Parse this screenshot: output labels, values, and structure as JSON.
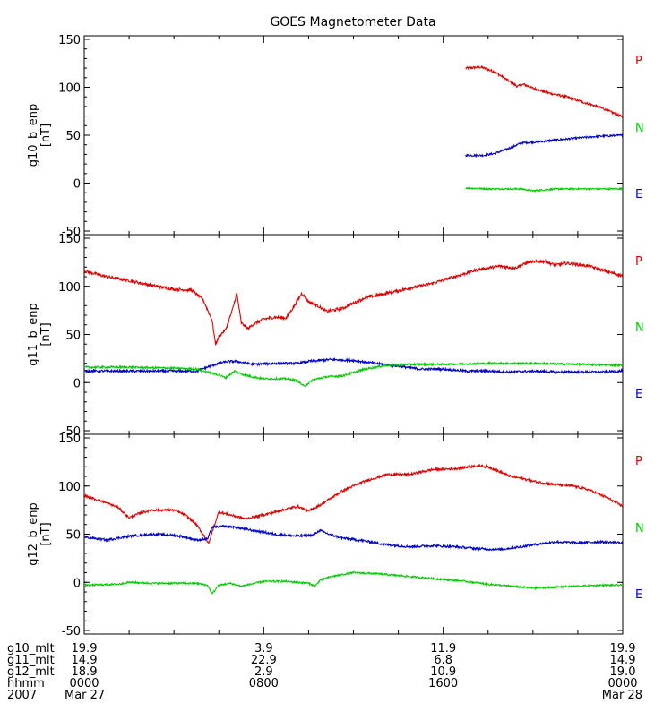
{
  "chart_data": {
    "type": "line",
    "title": "GOES Magnetometer Data",
    "x_range_hours": [
      0,
      24
    ],
    "panels": [
      {
        "ylabel": "g10_b_enp",
        "yunit": "[nT]",
        "ylim": [
          -50,
          150
        ],
        "yticks": [
          "150",
          "100",
          "50",
          "0",
          "-50"
        ],
        "legend": [
          "P",
          "N",
          "E"
        ],
        "series": [
          {
            "name": "P",
            "color": "#e00000",
            "noise": 1.2,
            "points": [
              [
                17.0,
                120
              ],
              [
                17.7,
                121
              ],
              [
                18.3,
                116
              ],
              [
                18.9,
                107
              ],
              [
                19.3,
                101
              ],
              [
                19.6,
                103
              ],
              [
                20.0,
                99
              ],
              [
                20.7,
                94
              ],
              [
                21.5,
                90
              ],
              [
                22.3,
                84
              ],
              [
                23.0,
                79
              ],
              [
                24.0,
                69
              ]
            ]
          },
          {
            "name": "N",
            "color": "#0000d0",
            "noise": 1.0,
            "points": [
              [
                17.0,
                29
              ],
              [
                17.8,
                29
              ],
              [
                18.3,
                31
              ],
              [
                18.9,
                36
              ],
              [
                19.5,
                42
              ],
              [
                20.2,
                43
              ],
              [
                21.0,
                45
              ],
              [
                22.0,
                47
              ],
              [
                23.0,
                49
              ],
              [
                24.0,
                50
              ]
            ]
          },
          {
            "name": "E",
            "color": "#00cc00",
            "noise": 0.8,
            "points": [
              [
                17.0,
                -5
              ],
              [
                18.0,
                -6
              ],
              [
                18.7,
                -6
              ],
              [
                19.5,
                -6
              ],
              [
                20.0,
                -8
              ],
              [
                21.0,
                -6
              ],
              [
                22.0,
                -6
              ],
              [
                23.0,
                -6
              ],
              [
                24.0,
                -6
              ]
            ]
          }
        ]
      },
      {
        "ylabel": "g11_b_enp",
        "yunit": "[nT]",
        "ylim": [
          -50,
          150
        ],
        "yticks": [
          "150",
          "100",
          "50",
          "0",
          "-50"
        ],
        "legend": [
          "P",
          "N",
          "E"
        ],
        "series": [
          {
            "name": "P",
            "color": "#e00000",
            "noise": 1.5,
            "points": [
              [
                0,
                116
              ],
              [
                1.0,
                110
              ],
              [
                2.0,
                106
              ],
              [
                3.0,
                101
              ],
              [
                4.0,
                97
              ],
              [
                4.8,
                96
              ],
              [
                5.3,
                86
              ],
              [
                5.7,
                65
              ],
              [
                5.85,
                40
              ],
              [
                6.0,
                48
              ],
              [
                6.3,
                55
              ],
              [
                6.6,
                75
              ],
              [
                6.8,
                93
              ],
              [
                7.0,
                62
              ],
              [
                7.3,
                56
              ],
              [
                7.5,
                60
              ],
              [
                8.0,
                66
              ],
              [
                8.5,
                68
              ],
              [
                9.0,
                67
              ],
              [
                9.4,
                81
              ],
              [
                9.7,
                93
              ],
              [
                10.0,
                84
              ],
              [
                10.4,
                80
              ],
              [
                10.8,
                74
              ],
              [
                11.5,
                77
              ],
              [
                12.5,
                88
              ],
              [
                13.5,
                93
              ],
              [
                14.5,
                98
              ],
              [
                15.5,
                103
              ],
              [
                16.5,
                110
              ],
              [
                17.5,
                117
              ],
              [
                18.5,
                121
              ],
              [
                19.2,
                119
              ],
              [
                19.8,
                125
              ],
              [
                20.5,
                126
              ],
              [
                21.0,
                122
              ],
              [
                21.5,
                124
              ],
              [
                22.5,
                121
              ],
              [
                23.2,
                116
              ],
              [
                24.0,
                111
              ]
            ]
          },
          {
            "name": "N",
            "color": "#0000d0",
            "noise": 1.2,
            "points": [
              [
                0,
                12
              ],
              [
                2.0,
                12
              ],
              [
                4.0,
                12
              ],
              [
                5.0,
                12
              ],
              [
                5.6,
                17
              ],
              [
                6.0,
                20
              ],
              [
                6.4,
                22
              ],
              [
                6.8,
                22
              ],
              [
                7.5,
                19
              ],
              [
                8.5,
                20
              ],
              [
                9.5,
                20
              ],
              [
                10.0,
                22
              ],
              [
                10.5,
                23
              ],
              [
                11.0,
                24
              ],
              [
                12.0,
                23
              ],
              [
                13.0,
                20
              ],
              [
                14.0,
                17
              ],
              [
                15.0,
                14
              ],
              [
                16.0,
                14
              ],
              [
                17.0,
                12
              ],
              [
                18.0,
                12
              ],
              [
                19.0,
                11
              ],
              [
                20.0,
                12
              ],
              [
                21.0,
                11
              ],
              [
                22.0,
                11
              ],
              [
                23.0,
                11
              ],
              [
                24.0,
                12
              ]
            ]
          },
          {
            "name": "E",
            "color": "#00cc00",
            "noise": 1.0,
            "points": [
              [
                0,
                16
              ],
              [
                2.0,
                16
              ],
              [
                4.0,
                15
              ],
              [
                5.0,
                14
              ],
              [
                5.5,
                11
              ],
              [
                6.0,
                8
              ],
              [
                6.3,
                5
              ],
              [
                6.7,
                12
              ],
              [
                7.0,
                9
              ],
              [
                7.5,
                6
              ],
              [
                8.0,
                4
              ],
              [
                9.0,
                4
              ],
              [
                9.5,
                2
              ],
              [
                9.8,
                -4
              ],
              [
                10.2,
                3
              ],
              [
                10.8,
                6
              ],
              [
                11.5,
                7
              ],
              [
                12.5,
                14
              ],
              [
                13.5,
                18
              ],
              [
                14.5,
                19
              ],
              [
                16.0,
                19
              ],
              [
                18.0,
                20
              ],
              [
                20.0,
                20
              ],
              [
                22.0,
                19
              ],
              [
                24.0,
                18
              ]
            ]
          }
        ]
      },
      {
        "ylabel": "g12_b_enp",
        "yunit": "[nT]",
        "ylim": [
          -50,
          150
        ],
        "yticks": [
          "150",
          "100",
          "50",
          "0",
          "-50"
        ],
        "legend": [
          "P",
          "N",
          "E"
        ],
        "series": [
          {
            "name": "P",
            "color": "#e00000",
            "noise": 1.2,
            "points": [
              [
                0,
                90
              ],
              [
                0.8,
                84
              ],
              [
                1.5,
                78
              ],
              [
                2.0,
                67
              ],
              [
                2.5,
                72
              ],
              [
                3.0,
                75
              ],
              [
                4.0,
                75
              ],
              [
                4.5,
                70
              ],
              [
                5.0,
                60
              ],
              [
                5.35,
                48
              ],
              [
                5.55,
                40
              ],
              [
                5.7,
                52
              ],
              [
                6.0,
                73
              ],
              [
                6.5,
                70
              ],
              [
                7.2,
                66
              ],
              [
                8.0,
                70
              ],
              [
                9.0,
                76
              ],
              [
                9.5,
                79
              ],
              [
                10.0,
                74
              ],
              [
                10.5,
                80
              ],
              [
                11.5,
                95
              ],
              [
                12.5,
                105
              ],
              [
                13.5,
                112
              ],
              [
                14.5,
                112
              ],
              [
                15.5,
                117
              ],
              [
                16.5,
                118
              ],
              [
                17.5,
                121
              ],
              [
                18.0,
                120
              ],
              [
                18.5,
                115
              ],
              [
                19.0,
                110
              ],
              [
                19.5,
                108
              ],
              [
                20.0,
                105
              ],
              [
                20.8,
                102
              ],
              [
                21.8,
                100
              ],
              [
                22.5,
                96
              ],
              [
                23.3,
                88
              ],
              [
                24.0,
                79
              ]
            ]
          },
          {
            "name": "N",
            "color": "#0000d0",
            "noise": 1.2,
            "points": [
              [
                0,
                47
              ],
              [
                1.0,
                44
              ],
              [
                2.0,
                48
              ],
              [
                3.0,
                50
              ],
              [
                4.0,
                49
              ],
              [
                4.5,
                47
              ],
              [
                5.0,
                44
              ],
              [
                5.5,
                45
              ],
              [
                5.7,
                57
              ],
              [
                6.0,
                58
              ],
              [
                6.5,
                58
              ],
              [
                7.5,
                54
              ],
              [
                8.5,
                50
              ],
              [
                9.5,
                48
              ],
              [
                10.2,
                49
              ],
              [
                10.5,
                54
              ],
              [
                10.9,
                50
              ],
              [
                11.5,
                46
              ],
              [
                12.5,
                43
              ],
              [
                13.5,
                39
              ],
              [
                14.5,
                37
              ],
              [
                15.5,
                38
              ],
              [
                16.5,
                37
              ],
              [
                17.5,
                35
              ],
              [
                18.5,
                34
              ],
              [
                19.5,
                37
              ],
              [
                20.0,
                39
              ],
              [
                21.0,
                42
              ],
              [
                22.0,
                41
              ],
              [
                23.0,
                42
              ],
              [
                24.0,
                41
              ]
            ]
          },
          {
            "name": "E",
            "color": "#00cc00",
            "noise": 0.9,
            "points": [
              [
                0,
                -3
              ],
              [
                1.5,
                -2
              ],
              [
                2.0,
                0
              ],
              [
                3.0,
                -1
              ],
              [
                4.0,
                -1
              ],
              [
                5.0,
                -1
              ],
              [
                5.5,
                -3
              ],
              [
                5.7,
                -12
              ],
              [
                6.0,
                -3
              ],
              [
                6.5,
                -1
              ],
              [
                7.0,
                -4
              ],
              [
                8.0,
                1
              ],
              [
                9.0,
                1
              ],
              [
                10.0,
                -1
              ],
              [
                10.3,
                -4
              ],
              [
                10.5,
                2
              ],
              [
                11.0,
                6
              ],
              [
                12.0,
                10
              ],
              [
                13.0,
                9
              ],
              [
                14.0,
                7
              ],
              [
                15.0,
                5
              ],
              [
                16.0,
                3
              ],
              [
                17.0,
                1
              ],
              [
                18.0,
                -2
              ],
              [
                19.0,
                -4
              ],
              [
                20.0,
                -6
              ],
              [
                21.0,
                -5
              ],
              [
                22.0,
                -4
              ],
              [
                23.0,
                -3
              ],
              [
                24.0,
                -3
              ]
            ]
          }
        ]
      }
    ],
    "footer": {
      "row_labels": [
        "g10_mlt",
        "g11_mlt",
        "g12_mlt",
        "hhmm",
        "2007"
      ],
      "columns": [
        {
          "hour": 0,
          "values": [
            "19.9",
            "14.9",
            "18.9",
            "0000",
            "Mar 27"
          ]
        },
        {
          "hour": 8,
          "values": [
            "3.9",
            "22.9",
            "2.9",
            "0800",
            ""
          ]
        },
        {
          "hour": 16,
          "values": [
            "11.9",
            "6.8",
            "10.9",
            "1600",
            ""
          ]
        },
        {
          "hour": 24,
          "values": [
            "19.9",
            "14.9",
            "19.0",
            "0000",
            "Mar 28"
          ]
        }
      ]
    }
  }
}
